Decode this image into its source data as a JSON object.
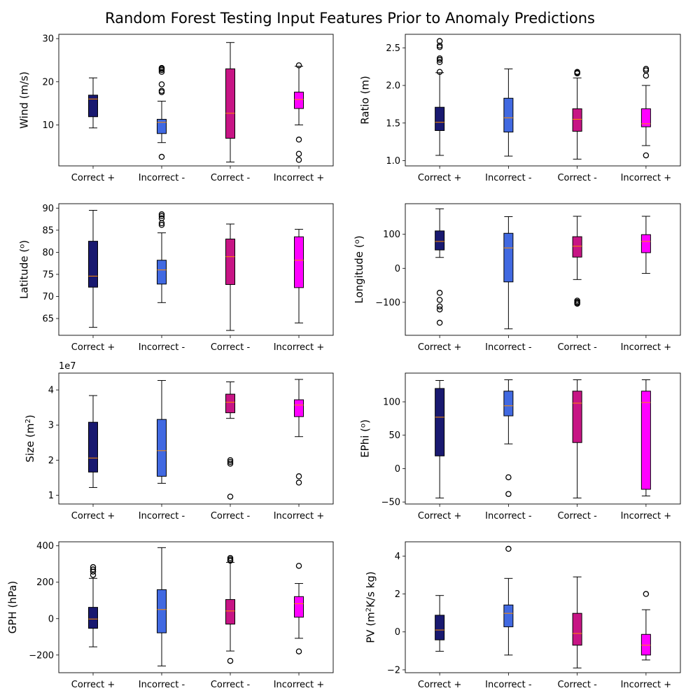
{
  "title": "Random Forest Testing Input Features Prior to Anomaly Predictions",
  "colors": {
    "Correct +": "#191970",
    "Incorrect -": "#4169e1",
    "Correct -": "#c71585",
    "Incorrect +": "#ff00ff",
    "median": "#ff8c00"
  },
  "chart_data": [
    {
      "type": "box",
      "ylabel": "Wind (m/s)",
      "categories": [
        "Correct +",
        "Incorrect -",
        "Correct -",
        "Incorrect +"
      ],
      "ylim": [
        0.5,
        31
      ],
      "yticks": [
        10,
        20,
        30
      ],
      "yticklabels": [
        "10",
        "20",
        "30"
      ],
      "boxes": [
        {
          "whislo": 9.3,
          "q1": 11.9,
          "med": 16.0,
          "q3": 16.9,
          "whishi": 20.9,
          "fliers": []
        },
        {
          "whislo": 5.9,
          "q1": 8.0,
          "med": 10.6,
          "q3": 11.3,
          "whishi": 15.5,
          "fliers": [
            2.6,
            17.6,
            17.9,
            19.4,
            22.3,
            22.7,
            23.0,
            23.2
          ]
        },
        {
          "whislo": 1.4,
          "q1": 6.9,
          "med": 12.7,
          "q3": 23.0,
          "whishi": 29.1,
          "fliers": []
        },
        {
          "whislo": 10.0,
          "q1": 13.8,
          "med": 15.9,
          "q3": 17.6,
          "whishi": 23.6,
          "fliers": [
            1.9,
            3.3,
            6.6,
            23.8
          ]
        }
      ]
    },
    {
      "type": "box",
      "ylabel": "Ratio (m)",
      "categories": [
        "Correct +",
        "Incorrect -",
        "Correct -",
        "Incorrect +"
      ],
      "ylim": [
        0.93,
        2.68
      ],
      "yticks": [
        1.0,
        1.5,
        2.0,
        2.5
      ],
      "yticklabels": [
        "1.0",
        "1.5",
        "2.0",
        "2.5"
      ],
      "boxes": [
        {
          "whislo": 1.07,
          "q1": 1.4,
          "med": 1.51,
          "q3": 1.71,
          "whishi": 2.17,
          "fliers": [
            2.18,
            2.31,
            2.34,
            2.36,
            2.51,
            2.53,
            2.59
          ]
        },
        {
          "whislo": 1.06,
          "q1": 1.38,
          "med": 1.57,
          "q3": 1.83,
          "whishi": 2.22,
          "fliers": []
        },
        {
          "whislo": 1.02,
          "q1": 1.39,
          "med": 1.55,
          "q3": 1.69,
          "whishi": 2.1,
          "fliers": [
            2.16,
            2.17,
            2.18
          ]
        },
        {
          "whislo": 1.2,
          "q1": 1.45,
          "med": 1.49,
          "q3": 1.69,
          "whishi": 2.0,
          "fliers": [
            1.07,
            2.13,
            2.2,
            2.22
          ]
        }
      ]
    },
    {
      "type": "box",
      "ylabel": "Latitude (°)",
      "categories": [
        "Correct +",
        "Incorrect -",
        "Correct -",
        "Incorrect +"
      ],
      "ylim": [
        61.2,
        91.0
      ],
      "yticks": [
        65,
        70,
        75,
        80,
        85,
        90
      ],
      "yticklabels": [
        "65",
        "70",
        "75",
        "80",
        "85",
        "90"
      ],
      "boxes": [
        {
          "whislo": 63.0,
          "q1": 72.1,
          "med": 74.6,
          "q3": 82.5,
          "whishi": 89.5,
          "fliers": []
        },
        {
          "whislo": 68.6,
          "q1": 72.8,
          "med": 76.0,
          "q3": 78.2,
          "whishi": 84.4,
          "fliers": [
            86.2,
            86.6,
            87.7,
            88.2,
            88.6
          ]
        },
        {
          "whislo": 62.3,
          "q1": 72.7,
          "med": 79.0,
          "q3": 83.0,
          "whishi": 86.4,
          "fliers": []
        },
        {
          "whislo": 64.0,
          "q1": 72.0,
          "med": 78.2,
          "q3": 83.5,
          "whishi": 85.2,
          "fliers": []
        }
      ]
    },
    {
      "type": "box",
      "ylabel": "Longitude (°)",
      "categories": [
        "Correct +",
        "Incorrect -",
        "Correct -",
        "Incorrect +"
      ],
      "ylim": [
        -197,
        190
      ],
      "yticks": [
        -100,
        0,
        100
      ],
      "yticklabels": [
        "−100",
        "0",
        "100"
      ],
      "boxes": [
        {
          "whislo": 32,
          "q1": 54,
          "med": 79,
          "q3": 110,
          "whishi": 175,
          "fliers": [
            -72,
            -93,
            -112,
            -121,
            -160
          ]
        },
        {
          "whislo": -178,
          "q1": -40,
          "med": 60,
          "q3": 103,
          "whishi": 152,
          "fliers": []
        },
        {
          "whislo": -33,
          "q1": 33,
          "med": 65,
          "q3": 93,
          "whishi": 153,
          "fliers": [
            -95,
            -99,
            -101,
            -104
          ]
        },
        {
          "whislo": -15,
          "q1": 46,
          "med": 79,
          "q3": 99,
          "whishi": 153,
          "fliers": []
        }
      ]
    },
    {
      "type": "box",
      "ylabel": "Size (m²)",
      "offset": "1e7",
      "categories": [
        "Correct +",
        "Incorrect -",
        "Correct -",
        "Incorrect +"
      ],
      "ylim": [
        0.75,
        4.48
      ],
      "yticks": [
        1,
        2,
        3,
        4
      ],
      "yticklabels": [
        "1",
        "2",
        "3",
        "4"
      ],
      "boxes": [
        {
          "whislo": 1.22,
          "q1": 1.66,
          "med": 2.06,
          "q3": 3.08,
          "whishi": 3.84,
          "fliers": []
        },
        {
          "whislo": 1.34,
          "q1": 1.54,
          "med": 2.27,
          "q3": 3.16,
          "whishi": 4.27,
          "fliers": []
        },
        {
          "whislo": 3.19,
          "q1": 3.35,
          "med": 3.65,
          "q3": 3.88,
          "whishi": 4.23,
          "fliers": [
            0.96,
            1.9,
            1.95,
            2.0
          ]
        },
        {
          "whislo": 2.67,
          "q1": 3.24,
          "med": 3.57,
          "q3": 3.72,
          "whishi": 4.3,
          "fliers": [
            1.36,
            1.54
          ]
        }
      ]
    },
    {
      "type": "box",
      "ylabel": "EPhi (°)",
      "categories": [
        "Correct +",
        "Incorrect -",
        "Correct -",
        "Incorrect +"
      ],
      "ylim": [
        -53,
        143
      ],
      "yticks": [
        -50,
        0,
        50,
        100
      ],
      "yticklabels": [
        "−50",
        "0",
        "50",
        "100"
      ],
      "boxes": [
        {
          "whislo": -44,
          "q1": 19,
          "med": 77,
          "q3": 120,
          "whishi": 132,
          "fliers": []
        },
        {
          "whislo": 37,
          "q1": 79,
          "med": 94,
          "q3": 116,
          "whishi": 133,
          "fliers": [
            -13,
            -38
          ]
        },
        {
          "whislo": -44,
          "q1": 39,
          "med": 98,
          "q3": 116,
          "whishi": 133,
          "fliers": []
        },
        {
          "whislo": -41,
          "q1": -31,
          "med": 99,
          "q3": 116,
          "whishi": 133,
          "fliers": []
        }
      ]
    },
    {
      "type": "box",
      "ylabel": "GPH (hPa)",
      "categories": [
        "Correct +",
        "Incorrect -",
        "Correct -",
        "Incorrect +"
      ],
      "ylim": [
        -297,
        422
      ],
      "yticks": [
        -200,
        0,
        200,
        400
      ],
      "yticklabels": [
        "−200",
        "0",
        "200",
        "400"
      ],
      "boxes": [
        {
          "whislo": -155,
          "q1": -53,
          "med": -2,
          "q3": 62,
          "whishi": 221,
          "fliers": [
            240,
            258,
            270,
            283
          ]
        },
        {
          "whislo": -260,
          "q1": -78,
          "med": 50,
          "q3": 159,
          "whishi": 390,
          "fliers": []
        },
        {
          "whislo": -178,
          "q1": -30,
          "med": 42,
          "q3": 105,
          "whishi": 309,
          "fliers": [
            -232,
            318,
            325,
            333
          ]
        },
        {
          "whislo": -108,
          "q1": 8,
          "med": 82,
          "q3": 121,
          "whishi": 193,
          "fliers": [
            -180,
            290
          ]
        }
      ]
    },
    {
      "type": "box",
      "ylabel": "PV (m²K/s kg)",
      "categories": [
        "Correct +",
        "Incorrect -",
        "Correct -",
        "Incorrect +"
      ],
      "ylim": [
        -2.15,
        4.75
      ],
      "yticks": [
        -2,
        0,
        2,
        4
      ],
      "yticklabels": [
        "−2",
        "0",
        "2",
        "4"
      ],
      "boxes": [
        {
          "whislo": -1.02,
          "q1": -0.42,
          "med": 0.1,
          "q3": 0.88,
          "whishi": 1.92,
          "fliers": []
        },
        {
          "whislo": -1.22,
          "q1": 0.27,
          "med": 0.98,
          "q3": 1.42,
          "whishi": 2.82,
          "fliers": [
            4.38
          ]
        },
        {
          "whislo": -1.9,
          "q1": -0.7,
          "med": -0.08,
          "q3": 0.98,
          "whishi": 2.9,
          "fliers": []
        },
        {
          "whislo": -1.48,
          "q1": -1.22,
          "med": -0.7,
          "q3": -0.13,
          "whishi": 1.17,
          "fliers": [
            2.0
          ]
        }
      ]
    }
  ]
}
